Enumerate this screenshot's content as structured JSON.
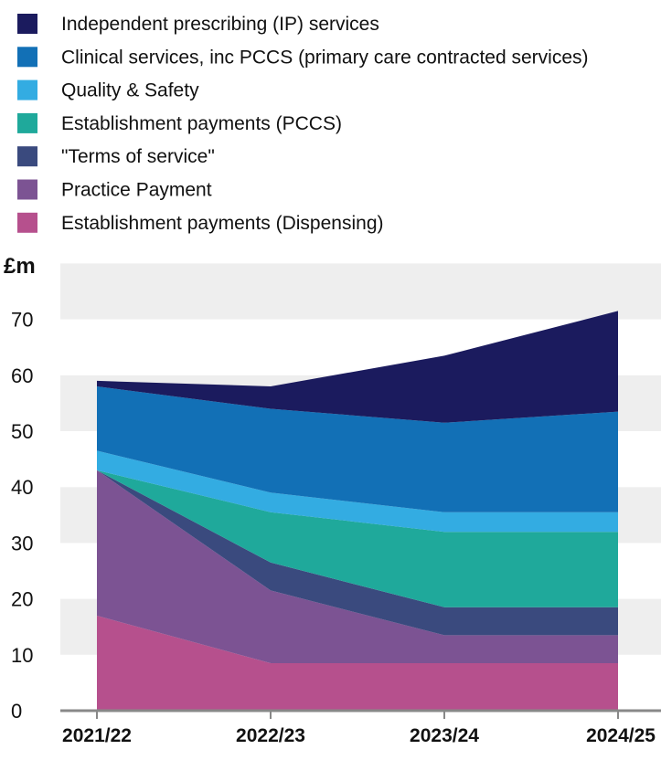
{
  "chart_data": {
    "type": "area",
    "stacked": true,
    "ylabel": "£m",
    "ylim": [
      0,
      80
    ],
    "yticks": [
      "0",
      "10",
      "20",
      "30",
      "40",
      "50",
      "60",
      "70"
    ],
    "grid": "alternating horizontal bands",
    "legend_position": "top",
    "categories": [
      "2021/22",
      "2022/23",
      "2023/24",
      "2024/25"
    ],
    "series": [
      {
        "name": "Establishment payments (Dispensing)",
        "color": "#b6508d",
        "values": [
          17,
          8.5,
          8.5,
          8.5
        ]
      },
      {
        "name": "Practice Payment",
        "color": "#7c5393",
        "values": [
          26,
          13,
          5,
          5
        ]
      },
      {
        "name": "\"Terms of service\"",
        "color": "#3a4a7e",
        "values": [
          0,
          5,
          5,
          5
        ]
      },
      {
        "name": "Establishment payments (PCCS)",
        "color": "#1fa99b",
        "values": [
          0,
          9,
          13.5,
          13.5
        ]
      },
      {
        "name": "Quality & Safety",
        "color": "#33ace2",
        "values": [
          3.5,
          3.5,
          3.5,
          3.5
        ]
      },
      {
        "name": "Clinical services, inc PCCS (primary care contracted services)",
        "color": "#1270b6",
        "values": [
          11.5,
          15,
          16,
          18
        ]
      },
      {
        "name": "Independent prescribing (IP) services",
        "color": "#1b1b5e",
        "values": [
          1,
          4,
          12,
          18
        ]
      }
    ]
  }
}
